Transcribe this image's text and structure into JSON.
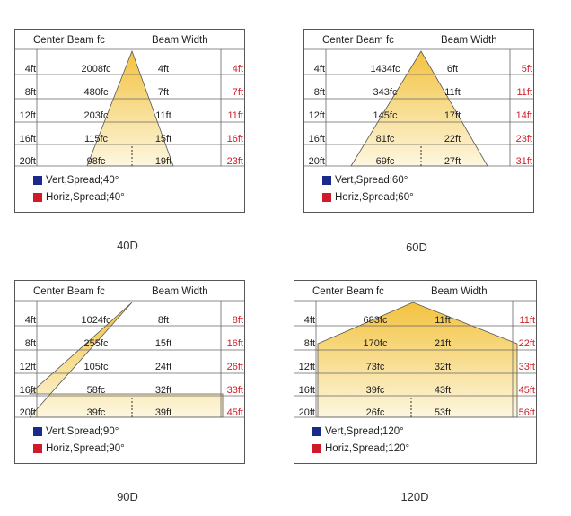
{
  "header": {
    "center_beam": "Center Beam fc",
    "beam_width": "Beam Width"
  },
  "colors": {
    "vert_swatch": "#1a2a8a",
    "horiz_swatch": "#d01a2a",
    "beam_top": "#f3c23e",
    "beam_bottom": "#fdf7e0",
    "red_text": "#d0202a"
  },
  "panels": [
    {
      "caption": "40D",
      "distances": [
        "4ft",
        "8ft",
        "12ft",
        "16ft",
        "20ft"
      ],
      "fc": [
        "2008fc",
        "480fc",
        "203fc",
        "115fc",
        "98fc"
      ],
      "width": [
        "4ft",
        "7ft",
        "11ft",
        "15ft",
        "19ft"
      ],
      "horiz": [
        "4ft",
        "7ft",
        "11ft",
        "16ft",
        "23ft"
      ],
      "legend": {
        "vert": "Vert,Spread;40°",
        "horiz": "Horiz,Spread;40°"
      }
    },
    {
      "caption": "60D",
      "distances": [
        "4ft",
        "8ft",
        "12ft",
        "16ft",
        "20ft"
      ],
      "fc": [
        "1434fc",
        "343fc",
        "145fc",
        "81fc",
        "69fc"
      ],
      "width": [
        "6ft",
        "11ft",
        "17ft",
        "22ft",
        "27ft"
      ],
      "horiz": [
        "5ft",
        "11ft",
        "14ft",
        "23ft",
        "31ft"
      ],
      "legend": {
        "vert": "Vert,Spread;60°",
        "horiz": "Horiz,Spread;60°"
      }
    },
    {
      "caption": "90D",
      "distances": [
        "4ft",
        "8ft",
        "12ft",
        "16ft",
        "20ft"
      ],
      "fc": [
        "1024fc",
        "255fc",
        "105fc",
        "58fc",
        "39fc"
      ],
      "width": [
        "8ft",
        "15ft",
        "24ft",
        "32ft",
        "39ft"
      ],
      "horiz": [
        "8ft",
        "16ft",
        "26ft",
        "33ft",
        "45ft"
      ],
      "legend": {
        "vert": "Vert,Spread;90°",
        "horiz": "Horiz,Spread;90°"
      }
    },
    {
      "caption": "120D",
      "distances": [
        "4ft",
        "8ft",
        "12ft",
        "16ft",
        "20ft"
      ],
      "fc": [
        "683fc",
        "170fc",
        "73fc",
        "39fc",
        "26fc"
      ],
      "width": [
        "11ft",
        "21ft",
        "32ft",
        "43ft",
        "53ft"
      ],
      "horiz": [
        "11ft",
        "22ft",
        "33ft",
        "45ft",
        "56ft"
      ],
      "legend": {
        "vert": "Vert,Spread;120°",
        "horiz": "Horiz,Spread;120°"
      }
    }
  ]
}
